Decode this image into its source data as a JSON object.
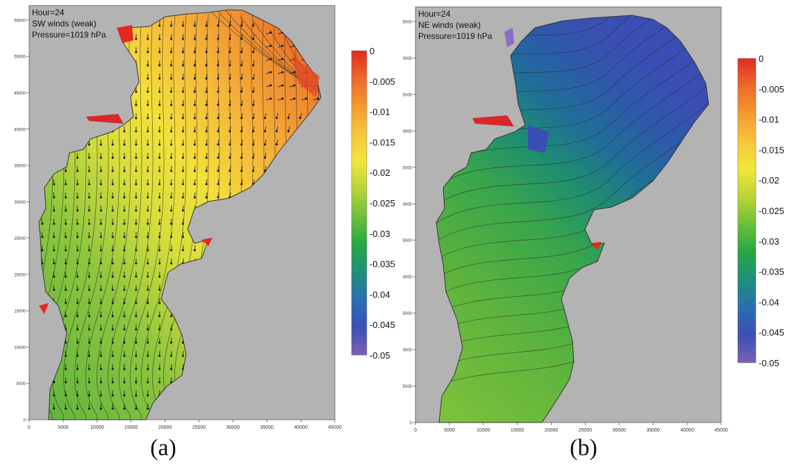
{
  "chart_data": [
    {
      "type": "contour",
      "panel_label": "(a)",
      "annotation_lines": [
        "Hour=24",
        "SW winds (weak)",
        "Pressure=1019 hPa"
      ],
      "x_ticks": [
        "0",
        "5000",
        "10000",
        "15000",
        "20000",
        "25000",
        "30000",
        "35000",
        "40000",
        "45000"
      ],
      "y_ticks": [
        "0",
        "5000",
        "10000",
        "15000",
        "20000",
        "25000",
        "30000",
        "35000",
        "40000",
        "45000",
        "50000",
        "55000"
      ],
      "xlim": [
        0,
        45000
      ],
      "ylim": [
        0,
        57000
      ],
      "colorbar": {
        "range": [
          -0.05,
          0
        ],
        "ticks": [
          "0",
          "-0.005",
          "-0.01",
          "-0.015",
          "-0.02",
          "-0.025",
          "-0.03",
          "-0.035",
          "-0.04",
          "-0.045",
          "-0.05"
        ]
      },
      "has_vectors": true
    },
    {
      "type": "contour",
      "panel_label": "(b)",
      "annotation_lines": [
        "Hour=24",
        "NE winds (weak)",
        "Pressure=1019 hPa"
      ],
      "x_ticks": [
        "0",
        "5000",
        "10000",
        "15000",
        "20000",
        "25000",
        "30000",
        "35000",
        "40000",
        "45000"
      ],
      "y_ticks": [
        "0",
        "5000",
        "10000",
        "15000",
        "20000",
        "25000",
        "30000",
        "35000",
        "40000",
        "45000",
        "50000",
        "55000"
      ],
      "xlim": [
        0,
        45000
      ],
      "ylim": [
        0,
        57000
      ],
      "colorbar": {
        "range": [
          -0.05,
          0
        ],
        "ticks": [
          "0",
          "-0.005",
          "-0.01",
          "-0.015",
          "-0.02",
          "-0.025",
          "-0.03",
          "-0.035",
          "-0.04",
          "-0.045",
          "-0.05"
        ]
      },
      "has_vectors": false
    }
  ],
  "colors": {
    "land": "#b3b3b3",
    "scale": [
      "#7b5fb8",
      "#3b4fb5",
      "#2a6fb0",
      "#1f8f7a",
      "#27a744",
      "#6cbf3a",
      "#b9d436",
      "#f1e63a",
      "#f7c63c",
      "#f39a2f",
      "#ec6a2a",
      "#e12a22"
    ]
  }
}
